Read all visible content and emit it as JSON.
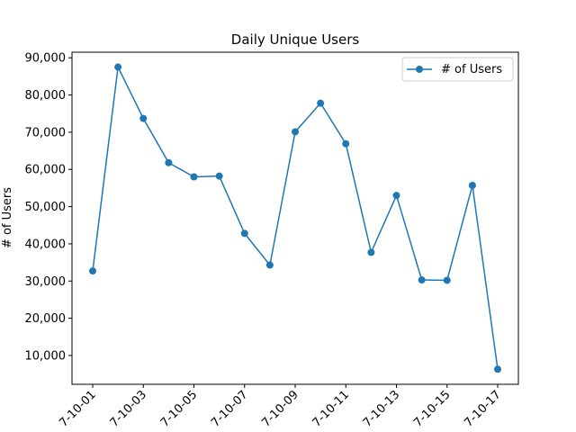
{
  "chart_data": {
    "type": "line",
    "title": "Daily Unique Users",
    "xlabel": "",
    "ylabel": "# of Users",
    "x": [
      "2017-10-01",
      "2017-10-02",
      "2017-10-03",
      "2017-10-04",
      "2017-10-05",
      "2017-10-06",
      "2017-10-07",
      "2017-10-08",
      "2017-10-09",
      "2017-10-10",
      "2017-10-11",
      "2017-10-12",
      "2017-10-13",
      "2017-10-14",
      "2017-10-15",
      "2017-10-16",
      "2017-10-17"
    ],
    "x_tick_labels": [
      "7-10-01",
      "7-10-03",
      "7-10-05",
      "7-10-07",
      "7-10-09",
      "7-10-11",
      "7-10-13",
      "7-10-15",
      "7-10-17"
    ],
    "x_tick_dates": [
      "2017-10-01",
      "2017-10-03",
      "2017-10-05",
      "2017-10-07",
      "2017-10-09",
      "2017-10-11",
      "2017-10-13",
      "2017-10-15",
      "2017-10-17"
    ],
    "series": [
      {
        "name": "# of Users",
        "color": "#1f77b4",
        "marker": "circle",
        "values": [
          32700,
          87500,
          73700,
          61800,
          58000,
          58200,
          42800,
          34300,
          70100,
          77800,
          66900,
          37700,
          53000,
          30300,
          30200,
          55700,
          6300
        ]
      }
    ],
    "y_ticks": [
      10000,
      20000,
      30000,
      40000,
      50000,
      60000,
      70000,
      80000,
      90000
    ],
    "y_tick_labels": [
      "10,000",
      "20,000",
      "30,000",
      "40,000",
      "50,000",
      "60,000",
      "70,000",
      "80,000",
      "90,000"
    ],
    "ylim": [
      2250,
      91500
    ],
    "grid": false,
    "legend_position": "top-right"
  }
}
